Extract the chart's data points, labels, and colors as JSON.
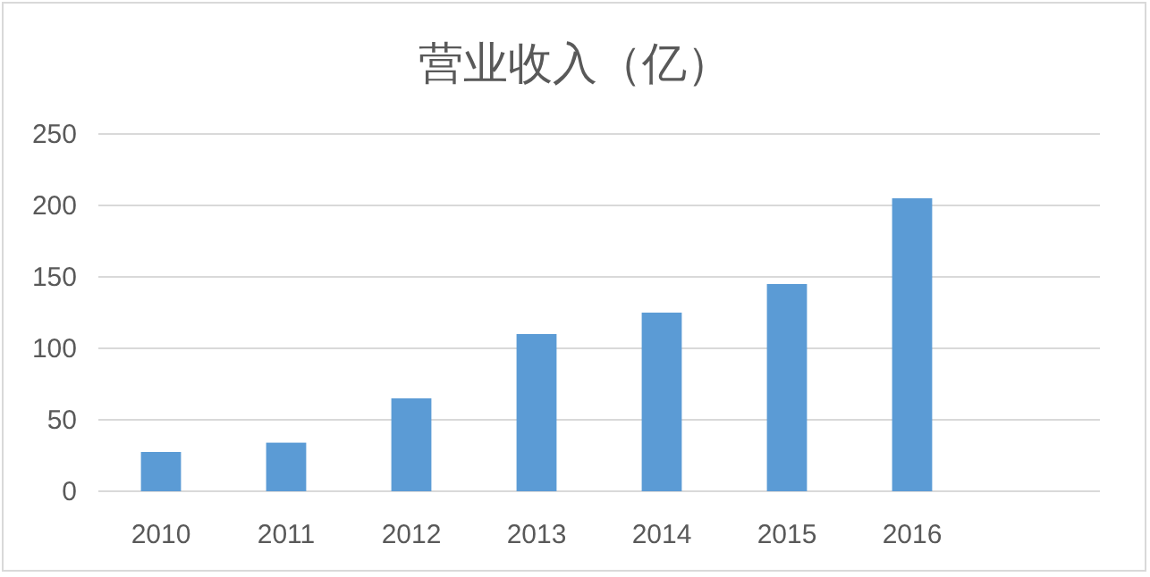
{
  "chart_data": {
    "type": "bar",
    "title": "营业收入（亿）",
    "categories": [
      "2010",
      "2011",
      "2012",
      "2013",
      "2014",
      "2015",
      "2016",
      null
    ],
    "values": [
      27.5,
      34,
      65,
      110,
      125,
      145,
      205,
      null
    ],
    "color": "#5b9bd5",
    "ylim": [
      0,
      250
    ],
    "yticks": [
      0,
      50,
      100,
      150,
      200,
      250
    ],
    "grid": "y"
  }
}
